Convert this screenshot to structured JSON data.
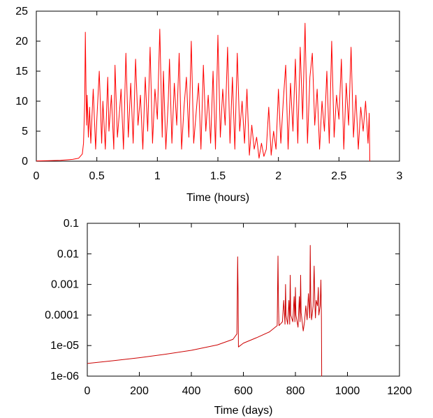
{
  "chart_data": [
    {
      "type": "line",
      "title": "",
      "xlabel": "Time (hours)",
      "ylabel": "",
      "xlim": [
        0,
        3
      ],
      "ylim": [
        0,
        25
      ],
      "xscale": "linear",
      "yscale": "linear",
      "grid": false,
      "xticks": [
        0,
        0.5,
        1,
        1.5,
        2,
        2.5,
        3
      ],
      "xtick_labels": [
        "0",
        "0.5",
        "1",
        "1.5",
        "2",
        "2.5",
        "3"
      ],
      "yticks": [
        0,
        5,
        10,
        15,
        20,
        25
      ],
      "ytick_labels": [
        "0",
        "5",
        "10",
        "15",
        "20",
        "25"
      ],
      "series": [
        {
          "color": "#ff0000",
          "x": [
            0,
            0.1,
            0.2,
            0.3,
            0.35,
            0.38,
            0.39,
            0.4,
            0.405,
            0.41,
            0.415,
            0.42,
            0.43,
            0.44,
            0.45,
            0.47,
            0.49,
            0.5,
            0.52,
            0.54,
            0.55,
            0.57,
            0.59,
            0.6,
            0.62,
            0.64,
            0.65,
            0.67,
            0.69,
            0.7,
            0.72,
            0.74,
            0.76,
            0.78,
            0.8,
            0.82,
            0.84,
            0.86,
            0.88,
            0.9,
            0.92,
            0.94,
            0.96,
            0.98,
            1.0,
            1.02,
            1.04,
            1.05,
            1.07,
            1.09,
            1.1,
            1.12,
            1.14,
            1.16,
            1.18,
            1.2,
            1.22,
            1.24,
            1.26,
            1.28,
            1.3,
            1.32,
            1.34,
            1.36,
            1.38,
            1.4,
            1.42,
            1.44,
            1.46,
            1.48,
            1.5,
            1.52,
            1.54,
            1.56,
            1.58,
            1.6,
            1.62,
            1.64,
            1.66,
            1.68,
            1.7,
            1.72,
            1.74,
            1.76,
            1.78,
            1.8,
            1.82,
            1.84,
            1.86,
            1.88,
            1.9,
            1.92,
            1.94,
            1.96,
            1.98,
            2.0,
            2.02,
            2.04,
            2.06,
            2.08,
            2.1,
            2.12,
            2.14,
            2.16,
            2.18,
            2.2,
            2.22,
            2.24,
            2.26,
            2.28,
            2.3,
            2.32,
            2.34,
            2.36,
            2.38,
            2.4,
            2.42,
            2.44,
            2.46,
            2.48,
            2.5,
            2.52,
            2.54,
            2.56,
            2.58,
            2.6,
            2.62,
            2.64,
            2.66,
            2.68,
            2.7,
            2.72,
            2.74,
            2.75,
            2.755
          ],
          "y": [
            0.05,
            0.08,
            0.15,
            0.3,
            0.5,
            1.2,
            3,
            10,
            21.5,
            13,
            6,
            11,
            4,
            9,
            3,
            12,
            2,
            7,
            15,
            3,
            10,
            2,
            14,
            5,
            11,
            2,
            16,
            4,
            9,
            12,
            2,
            18,
            4,
            13,
            3,
            17,
            6,
            11,
            2,
            14,
            5,
            19,
            3,
            12,
            7,
            22,
            4,
            15,
            2,
            10,
            17,
            3,
            13,
            6,
            18,
            2,
            9,
            14,
            4,
            20,
            3,
            8,
            13,
            2,
            16,
            5,
            11,
            3,
            15,
            2,
            21,
            4,
            12,
            6,
            19,
            3,
            14,
            2,
            18,
            5,
            10,
            3,
            12,
            1,
            6,
            2,
            4,
            0.5,
            3,
            0.8,
            2,
            9,
            1,
            5,
            2,
            12,
            3,
            10,
            16,
            2,
            13,
            5,
            17,
            3,
            19,
            7,
            23,
            3,
            14,
            18,
            6,
            12,
            2,
            10,
            5,
            15,
            3,
            20,
            4,
            11,
            7,
            17,
            2,
            13,
            6,
            19,
            4,
            11,
            2,
            9,
            5,
            10,
            3,
            8,
            0
          ]
        }
      ]
    },
    {
      "type": "line",
      "title": "",
      "xlabel": "Time (days)",
      "ylabel": "",
      "xlim": [
        0,
        1200
      ],
      "ylim": [
        1e-06,
        0.1
      ],
      "xscale": "linear",
      "yscale": "log",
      "grid": false,
      "xticks": [
        0,
        200,
        400,
        600,
        800,
        1000,
        1200
      ],
      "xtick_labels": [
        "0",
        "200",
        "400",
        "600",
        "800",
        "1000",
        "1200"
      ],
      "yticks": [
        1e-06,
        1e-05,
        0.0001,
        0.001,
        0.01,
        0.1
      ],
      "ytick_labels": [
        "1e-06",
        "1e-05",
        "0.0001",
        "0.001",
        "0.01",
        "0.1"
      ],
      "series": [
        {
          "color": "#cc0000",
          "x": [
            0,
            100,
            200,
            300,
            400,
            500,
            560,
            575,
            578,
            580,
            581,
            600,
            650,
            700,
            730,
            733,
            735,
            737,
            750,
            755,
            760,
            762,
            764,
            770,
            775,
            778,
            780,
            782,
            790,
            795,
            798,
            800,
            802,
            810,
            815,
            818,
            820,
            822,
            830,
            835,
            840,
            845,
            850,
            855,
            857,
            859,
            862,
            868,
            872,
            875,
            877,
            880,
            885,
            888,
            890,
            895,
            898,
            900,
            901,
            902
          ],
          "y": [
            2.6e-06,
            3.2e-06,
            4e-06,
            5.2e-06,
            7e-06,
            1.05e-05,
            1.6e-05,
            2.4e-05,
            0.008,
            0.0003,
            9e-06,
            1.2e-05,
            1.8e-05,
            2.8e-05,
            4.5e-05,
            0.0085,
            0.0002,
            4.5e-05,
            6e-05,
            0.0003,
            5e-05,
            0.001,
            0.0001,
            5e-05,
            0.0003,
            5e-05,
            0.002,
            0.0001,
            6e-05,
            0.0004,
            6e-05,
            0.0008,
            0.0001,
            4e-05,
            0.0004,
            6e-05,
            0.002,
            0.00012,
            3e-05,
            6e-05,
            0.0002,
            7e-05,
            0.0005,
            8e-05,
            0.019,
            0.0003,
            7e-05,
            0.0002,
            0.004,
            0.0002,
            8e-05,
            0.0003,
            0.0002,
            0.0008,
            0.0001,
            0.0002,
            0.0014,
            8e-05,
            1e-06,
            1e-06
          ]
        }
      ]
    }
  ]
}
